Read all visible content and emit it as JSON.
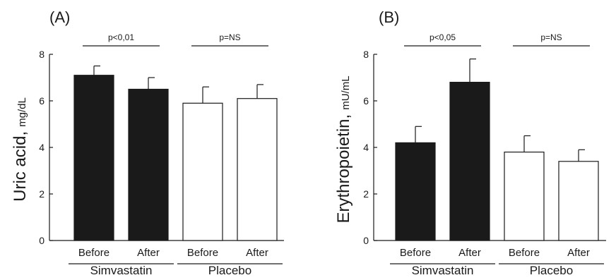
{
  "chart_data": [
    {
      "type": "bar",
      "panel_label": "(A)",
      "ylabel_main": "Uric acid,",
      "ylabel_unit": "mg/dL",
      "ylim": [
        0,
        8
      ],
      "yticks": [
        0,
        2,
        4,
        6,
        8
      ],
      "ytick_labels": [
        "0",
        "2",
        "4",
        "6",
        "8"
      ],
      "categories": [
        "Before",
        "After",
        "Before",
        "After"
      ],
      "groups": [
        {
          "label": "Simvastatin",
          "span": [
            0,
            1
          ]
        },
        {
          "label": "Placebo",
          "span": [
            2,
            3
          ]
        }
      ],
      "values": [
        7.1,
        6.5,
        5.9,
        6.1
      ],
      "errors": [
        0.4,
        0.5,
        0.7,
        0.6
      ],
      "fills": [
        "#1a1a1a",
        "#1a1a1a",
        "#ffffff",
        "#ffffff"
      ],
      "comparisons": [
        {
          "text": "p<0,01",
          "span": [
            0,
            1
          ]
        },
        {
          "text": "p=NS",
          "span": [
            2,
            3
          ]
        }
      ]
    },
    {
      "type": "bar",
      "panel_label": "(B)",
      "ylabel_main": "Erythropoietin,",
      "ylabel_unit": "mU/mL",
      "ylim": [
        0,
        8
      ],
      "yticks": [
        0,
        2,
        4,
        6,
        8
      ],
      "ytick_labels": [
        "0",
        "2",
        "4",
        "6",
        "8"
      ],
      "categories": [
        "Before",
        "After",
        "Before",
        "After"
      ],
      "groups": [
        {
          "label": "Simvastatin",
          "span": [
            0,
            1
          ]
        },
        {
          "label": "Placebo",
          "span": [
            2,
            3
          ]
        }
      ],
      "values": [
        4.2,
        6.8,
        3.8,
        3.4
      ],
      "errors": [
        0.7,
        1.0,
        0.7,
        0.5
      ],
      "fills": [
        "#1a1a1a",
        "#1a1a1a",
        "#ffffff",
        "#ffffff"
      ],
      "comparisons": [
        {
          "text": "p<0,05",
          "span": [
            0,
            1
          ]
        },
        {
          "text": "p=NS",
          "span": [
            2,
            3
          ]
        }
      ]
    }
  ]
}
